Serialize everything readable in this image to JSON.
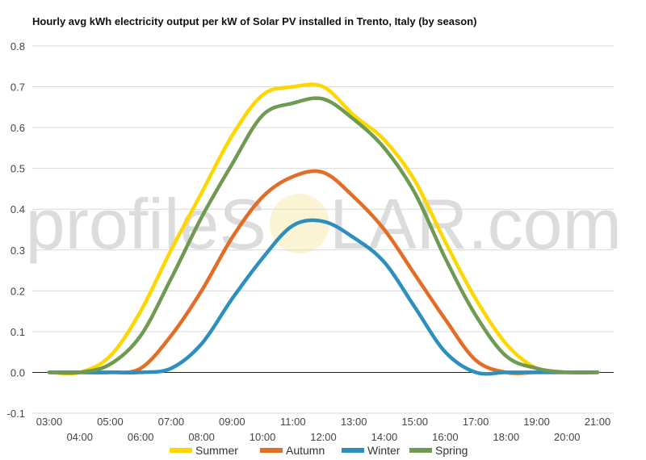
{
  "chart_data": {
    "type": "line",
    "title": "Hourly avg kWh electricity output per kW of Solar PV installed in Trento, Italy (by season)",
    "xlabel": "",
    "ylabel": "",
    "x": [
      "03:00",
      "04:00",
      "05:00",
      "06:00",
      "07:00",
      "08:00",
      "09:00",
      "10:00",
      "11:00",
      "12:00",
      "13:00",
      "14:00",
      "15:00",
      "16:00",
      "17:00",
      "18:00",
      "19:00",
      "20:00",
      "21:00"
    ],
    "ylim": [
      -0.1,
      0.8
    ],
    "yticks": [
      "-0.1",
      "0.0",
      "0.1",
      "0.2",
      "0.3",
      "0.4",
      "0.5",
      "0.6",
      "0.7",
      "0.8"
    ],
    "grid": true,
    "legend": "bottom",
    "series": [
      {
        "name": "Summer",
        "color": "#FFD700",
        "values": [
          0.0,
          0.0,
          0.04,
          0.15,
          0.3,
          0.44,
          0.58,
          0.68,
          0.7,
          0.7,
          0.63,
          0.57,
          0.47,
          0.32,
          0.18,
          0.07,
          0.01,
          0.0,
          0.0
        ]
      },
      {
        "name": "Autumn",
        "color": "#E36C26",
        "values": [
          0.0,
          0.0,
          0.0,
          0.01,
          0.09,
          0.2,
          0.33,
          0.43,
          0.48,
          0.49,
          0.43,
          0.35,
          0.24,
          0.13,
          0.03,
          0.0,
          0.0,
          0.0,
          0.0
        ]
      },
      {
        "name": "Winter",
        "color": "#2C8FBE",
        "values": [
          0.0,
          0.0,
          0.0,
          0.0,
          0.01,
          0.07,
          0.18,
          0.28,
          0.36,
          0.37,
          0.33,
          0.27,
          0.16,
          0.05,
          0.0,
          0.0,
          0.0,
          0.0,
          0.0
        ]
      },
      {
        "name": "Spring",
        "color": "#6E9A52",
        "values": [
          0.0,
          0.0,
          0.02,
          0.09,
          0.23,
          0.38,
          0.51,
          0.63,
          0.66,
          0.67,
          0.62,
          0.55,
          0.44,
          0.28,
          0.14,
          0.04,
          0.01,
          0.0,
          0.0
        ]
      }
    ]
  },
  "watermark": {
    "prefix": "profileS",
    "suffix": "LAR.com"
  }
}
